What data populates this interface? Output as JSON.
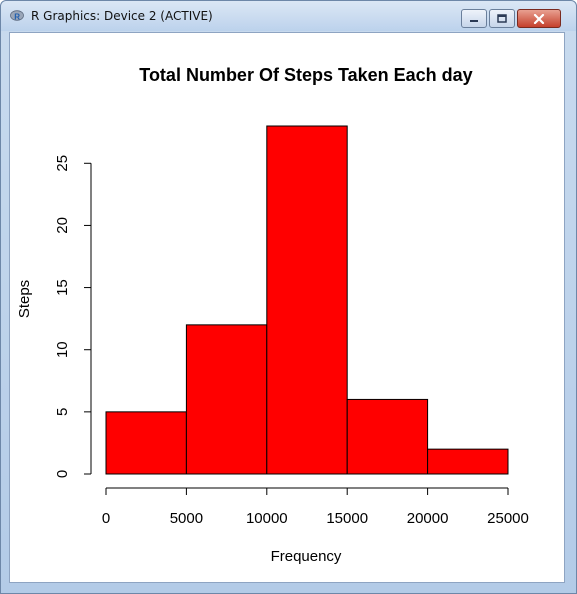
{
  "window": {
    "title": "R Graphics: Device 2 (ACTIVE)",
    "icon": "r-logo-icon",
    "controls": [
      "minimize-icon",
      "maximize-icon",
      "close-icon"
    ]
  },
  "chart_data": {
    "type": "bar",
    "title": "Total Number Of Steps Taken Each day",
    "xlabel": "Frequency",
    "ylabel": "Steps",
    "bins": [
      {
        "from": 0,
        "to": 5000,
        "count": 5
      },
      {
        "from": 5000,
        "to": 10000,
        "count": 12
      },
      {
        "from": 10000,
        "to": 15000,
        "count": 28
      },
      {
        "from": 15000,
        "to": 20000,
        "count": 6
      },
      {
        "from": 20000,
        "to": 25000,
        "count": 2
      }
    ],
    "xticks": [
      0,
      5000,
      10000,
      15000,
      20000,
      25000
    ],
    "yticks": [
      0,
      5,
      10,
      15,
      20,
      25
    ],
    "xlim": [
      0,
      25000
    ],
    "ylim": [
      0,
      28
    ],
    "bar_color": "#ff0000",
    "bar_border": "#000000",
    "grid": false
  }
}
